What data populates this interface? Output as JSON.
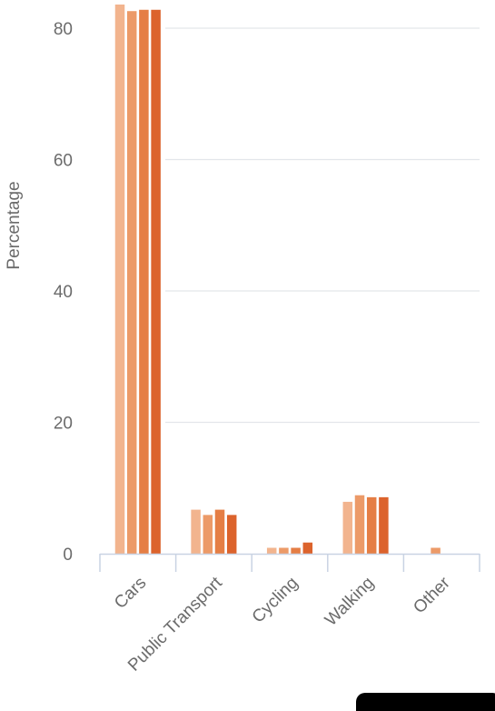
{
  "chart_data": {
    "type": "bar",
    "ylabel": "Percentage",
    "xlabel": "",
    "ylim": [
      0,
      84
    ],
    "yticks": [
      0,
      20,
      40,
      60,
      80
    ],
    "grid": true,
    "legend": "none",
    "categories": [
      "Cars",
      "Public Transport",
      "Cycling",
      "Walking",
      "Other"
    ],
    "series": [
      {
        "color": "#f2b48e",
        "values": [
          83.6,
          6.7,
          0.9,
          7.9,
          0
        ]
      },
      {
        "color": "#ec9a68",
        "values": [
          82.6,
          5.9,
          0.9,
          8.9,
          0.9
        ]
      },
      {
        "color": "#e57e45",
        "values": [
          82.8,
          6.7,
          0.9,
          8.6,
          0
        ]
      },
      {
        "color": "#dc632c",
        "values": [
          82.8,
          5.9,
          1.7,
          8.6,
          0
        ]
      }
    ]
  }
}
